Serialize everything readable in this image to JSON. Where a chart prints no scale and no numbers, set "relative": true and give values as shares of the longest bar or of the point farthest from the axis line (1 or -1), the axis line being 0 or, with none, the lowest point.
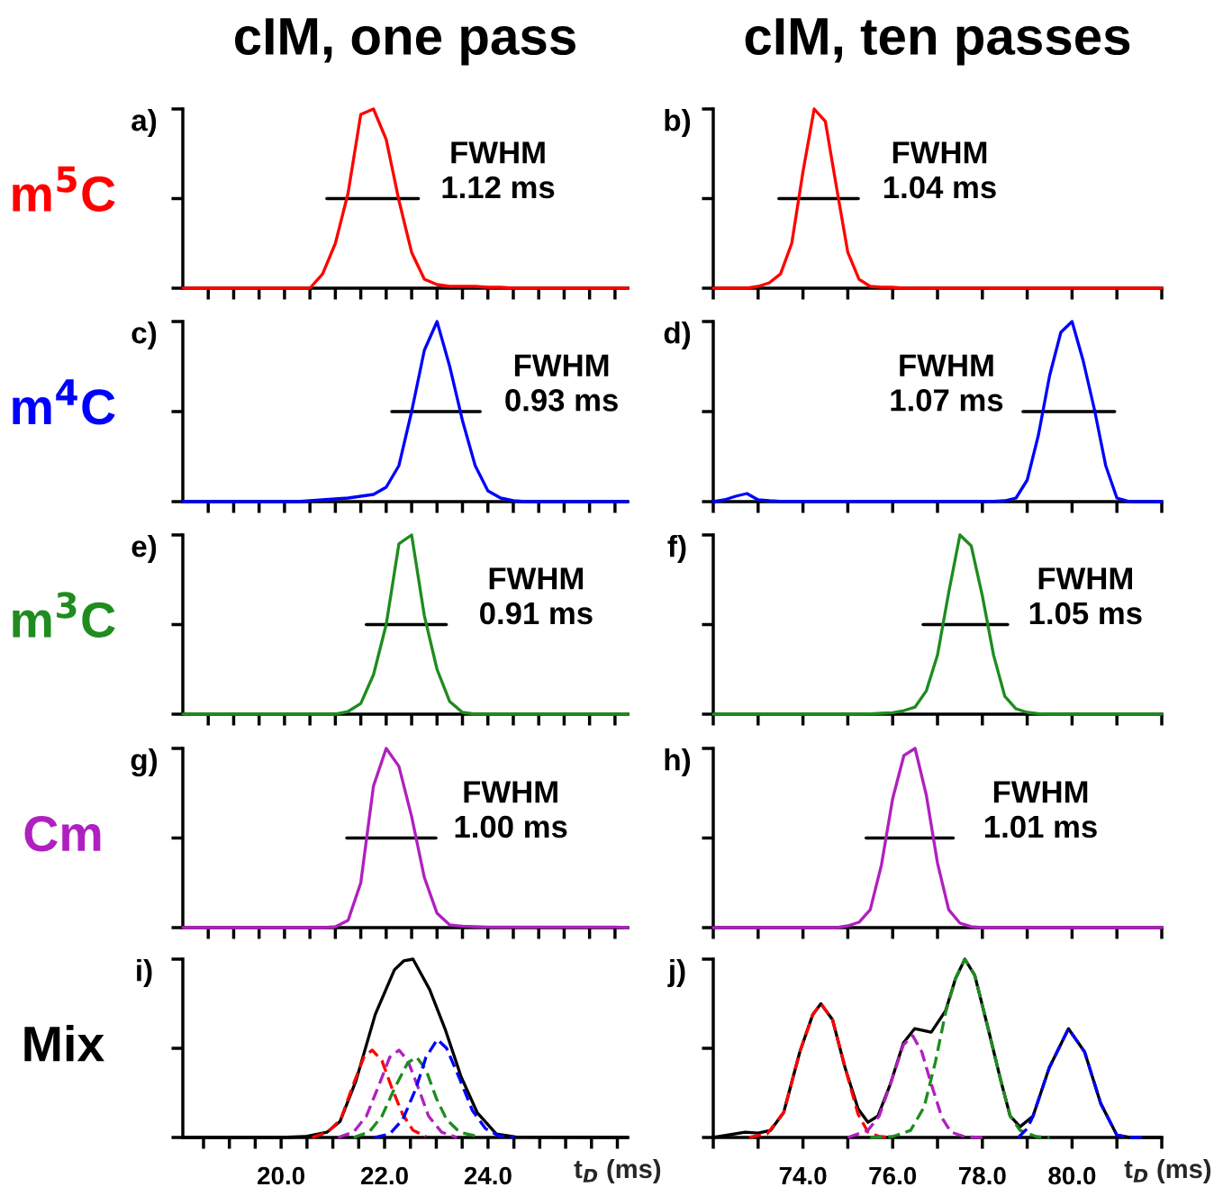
{
  "chart_data": [
    {
      "type": "line",
      "title": "a)",
      "subtitle": "cIM, one pass",
      "ylabel": "m$^{5}$C",
      "relative": true,
      "tick_labels": false,
      "categories": [
        null,
        null,
        null,
        null,
        null,
        null,
        null,
        null,
        null,
        null,
        null,
        null,
        null,
        null,
        null,
        null,
        null,
        null,
        null,
        null,
        null,
        null,
        null,
        null,
        null,
        null,
        null,
        null,
        null,
        null,
        null,
        null,
        null,
        null,
        null,
        null
      ],
      "annotations": [
        "FWHM\n1.12 ms"
      ],
      "series": [
        {
          "color": "#ff0000",
          "values": [
            0,
            0,
            0,
            0,
            0,
            0,
            0,
            0,
            0,
            0,
            0,
            0.08,
            0.25,
            0.53,
            0.97,
            1.0,
            0.83,
            0.49,
            0.2,
            0.05,
            0.02,
            0.01,
            0.01,
            0.01,
            0.005,
            0.005,
            0,
            0,
            0,
            0,
            0,
            0,
            0,
            0,
            0,
            0
          ]
        }
      ]
    },
    {
      "type": "line",
      "title": "b)",
      "subtitle": "cIM, ten passes",
      "relative": true,
      "tick_labels": false,
      "categories": [
        null,
        null,
        null,
        null,
        null,
        null,
        null,
        null,
        null,
        null,
        null,
        null,
        null,
        null,
        null,
        null,
        null,
        null,
        null,
        null,
        null,
        null,
        null,
        null,
        null,
        null,
        null,
        null,
        null,
        null,
        null,
        null,
        null,
        null,
        null,
        null,
        null,
        null,
        null,
        null,
        null
      ],
      "annotations": [
        "FWHM\n1.04 ms"
      ],
      "series": [
        {
          "color": "#ff0000",
          "values": [
            0,
            0,
            0,
            0,
            0.01,
            0.03,
            0.08,
            0.25,
            0.65,
            1.0,
            0.93,
            0.56,
            0.2,
            0.05,
            0.01,
            0.005,
            0.005,
            0,
            0,
            0,
            0,
            0,
            0,
            0,
            0,
            0,
            0,
            0,
            0,
            0,
            0,
            0,
            0,
            0,
            0,
            0,
            0,
            0,
            0,
            0,
            0
          ]
        }
      ]
    },
    {
      "type": "line",
      "title": "c)",
      "ylabel": "m$^{4}$C",
      "relative": true,
      "tick_labels": false,
      "categories": [
        null,
        null,
        null,
        null,
        null,
        null,
        null,
        null,
        null,
        null,
        null,
        null,
        null,
        null,
        null,
        null,
        null,
        null,
        null,
        null,
        null,
        null,
        null,
        null,
        null,
        null,
        null,
        null,
        null,
        null,
        null,
        null,
        null,
        null,
        null,
        null
      ],
      "annotations": [
        "FWHM\n0.93 ms"
      ],
      "series": [
        {
          "color": "#0000ff",
          "values": [
            0,
            0,
            0,
            0,
            0,
            0,
            0,
            0,
            0,
            0,
            0.005,
            0.01,
            0.015,
            0.02,
            0.03,
            0.04,
            0.08,
            0.2,
            0.5,
            0.84,
            1.0,
            0.75,
            0.45,
            0.2,
            0.06,
            0.02,
            0.005,
            0,
            0,
            0,
            0,
            0,
            0,
            0,
            0,
            0
          ]
        }
      ]
    },
    {
      "type": "line",
      "title": "d)",
      "relative": true,
      "tick_labels": false,
      "categories": [
        null,
        null,
        null,
        null,
        null,
        null,
        null,
        null,
        null,
        null,
        null,
        null,
        null,
        null,
        null,
        null,
        null,
        null,
        null,
        null,
        null,
        null,
        null,
        null,
        null,
        null,
        null,
        null,
        null,
        null,
        null,
        null,
        null,
        null,
        null,
        null,
        null,
        null,
        null,
        null,
        null
      ],
      "annotations": [
        "FWHM\n1.07 ms"
      ],
      "series": [
        {
          "color": "#0000ff",
          "values": [
            0,
            0.01,
            0.03,
            0.045,
            0.01,
            0.005,
            0.002,
            0.002,
            0.002,
            0.002,
            0.002,
            0.002,
            0.002,
            0.002,
            0.002,
            0.002,
            0.002,
            0.002,
            0.002,
            0.002,
            0.002,
            0.002,
            0.002,
            0.002,
            0.002,
            0.002,
            0.005,
            0.02,
            0.12,
            0.37,
            0.7,
            0.94,
            1.0,
            0.78,
            0.51,
            0.2,
            0.02,
            0.002,
            0,
            0,
            0
          ]
        }
      ]
    },
    {
      "type": "line",
      "title": "e)",
      "ylabel": "m$^{3}$C",
      "relative": true,
      "tick_labels": false,
      "categories": [
        null,
        null,
        null,
        null,
        null,
        null,
        null,
        null,
        null,
        null,
        null,
        null,
        null,
        null,
        null,
        null,
        null,
        null,
        null,
        null,
        null,
        null,
        null,
        null,
        null,
        null,
        null,
        null,
        null,
        null,
        null,
        null,
        null,
        null,
        null,
        null
      ],
      "annotations": [
        "FWHM\n0.91 ms"
      ],
      "series": [
        {
          "color": "#1e8c1e",
          "values": [
            0,
            0,
            0,
            0,
            0,
            0,
            0,
            0,
            0,
            0,
            0,
            0,
            0,
            0.015,
            0.06,
            0.22,
            0.5,
            0.95,
            1.0,
            0.55,
            0.25,
            0.07,
            0.01,
            0,
            0,
            0,
            0,
            0,
            0,
            0,
            0,
            0,
            0,
            0,
            0,
            0
          ]
        }
      ]
    },
    {
      "type": "line",
      "title": "f)",
      "relative": true,
      "tick_labels": false,
      "categories": [
        null,
        null,
        null,
        null,
        null,
        null,
        null,
        null,
        null,
        null,
        null,
        null,
        null,
        null,
        null,
        null,
        null,
        null,
        null,
        null,
        null,
        null,
        null,
        null,
        null,
        null,
        null,
        null,
        null,
        null,
        null,
        null,
        null,
        null,
        null,
        null,
        null,
        null,
        null,
        null,
        null
      ],
      "annotations": [
        "FWHM\n1.05 ms"
      ],
      "series": [
        {
          "color": "#1e8c1e",
          "values": [
            0,
            0,
            0,
            0,
            0,
            0,
            0,
            0,
            0,
            0,
            0,
            0,
            0,
            0,
            0.002,
            0.005,
            0.008,
            0.02,
            0.04,
            0.13,
            0.33,
            0.68,
            1.0,
            0.94,
            0.66,
            0.33,
            0.1,
            0.03,
            0.01,
            0.003,
            0,
            0,
            0,
            0,
            0,
            0,
            0,
            0,
            0,
            0,
            0
          ]
        }
      ]
    },
    {
      "type": "line",
      "title": "g)",
      "ylabel": "Cm",
      "relative": true,
      "tick_labels": false,
      "categories": [
        null,
        null,
        null,
        null,
        null,
        null,
        null,
        null,
        null,
        null,
        null,
        null,
        null,
        null,
        null,
        null,
        null,
        null,
        null,
        null,
        null,
        null,
        null,
        null,
        null,
        null,
        null,
        null,
        null,
        null,
        null,
        null,
        null,
        null,
        null,
        null
      ],
      "annotations": [
        "FWHM\n1.00 ms"
      ],
      "series": [
        {
          "color": "#b020c0",
          "values": [
            0,
            0,
            0,
            0,
            0,
            0,
            0,
            0,
            0,
            0,
            0,
            0,
            0.005,
            0.04,
            0.25,
            0.79,
            1.0,
            0.9,
            0.62,
            0.28,
            0.08,
            0.015,
            0.008,
            0.005,
            0.003,
            0.003,
            0.003,
            0.003,
            0.003,
            0.003,
            0.003,
            0.003,
            0.003,
            0.003,
            0.003,
            0
          ]
        }
      ]
    },
    {
      "type": "line",
      "title": "h)",
      "relative": true,
      "tick_labels": false,
      "categories": [
        null,
        null,
        null,
        null,
        null,
        null,
        null,
        null,
        null,
        null,
        null,
        null,
        null,
        null,
        null,
        null,
        null,
        null,
        null,
        null,
        null,
        null,
        null,
        null,
        null,
        null,
        null,
        null,
        null,
        null,
        null,
        null,
        null,
        null,
        null,
        null,
        null,
        null,
        null,
        null,
        null
      ],
      "annotations": [
        "FWHM\n1.01 ms"
      ],
      "series": [
        {
          "color": "#b020c0",
          "values": [
            0,
            0,
            0,
            0,
            0,
            0,
            0,
            0,
            0,
            0,
            0,
            0,
            0.01,
            0.03,
            0.1,
            0.35,
            0.72,
            0.96,
            1.0,
            0.74,
            0.36,
            0.1,
            0.025,
            0.006,
            0,
            0,
            0,
            0,
            0,
            0,
            0,
            0,
            0,
            0,
            0,
            0,
            0,
            0,
            0,
            0,
            0
          ]
        }
      ]
    },
    {
      "type": "line",
      "title": "i)",
      "ylabel": "Mix",
      "xlabel": "t$_{D}$ (ms)",
      "relative": true,
      "tick_labels": "x",
      "xlim": [
        18.1,
        26.7
      ],
      "xticks": [
        {
          "value": 18.5,
          "label": null
        },
        {
          "value": 19,
          "label": null
        },
        {
          "value": 19.5,
          "label": null
        },
        {
          "value": 20,
          "label": "20.0"
        },
        {
          "value": 20.5,
          "label": null
        },
        {
          "value": 21,
          "label": null
        },
        {
          "value": 21.5,
          "label": null
        },
        {
          "value": 22,
          "label": "22.0"
        },
        {
          "value": 22.5,
          "label": null
        },
        {
          "value": 23,
          "label": null
        },
        {
          "value": 23.5,
          "label": null
        },
        {
          "value": 24,
          "label": "24.0"
        },
        {
          "value": 24.5,
          "label": null
        },
        {
          "value": 25,
          "label": null
        },
        {
          "value": 25.5,
          "label": null
        },
        {
          "value": 26,
          "label": null
        },
        {
          "value": 26.5,
          "label": null
        }
      ],
      "series": [
        {
          "color": "#000000",
          "x": [
            18.1,
            20.0,
            20.46,
            20.89,
            21.14,
            21.45,
            21.82,
            22.19,
            22.37,
            22.55,
            22.87,
            23.18,
            23.48,
            23.79,
            24.16,
            24.53,
            26.7
          ],
          "values": [
            0,
            0,
            0.005,
            0.03,
            0.09,
            0.32,
            0.69,
            0.94,
            0.99,
            1.0,
            0.83,
            0.6,
            0.34,
            0.14,
            0.02,
            0.003,
            0
          ]
        },
        {
          "color": "#ff0000",
          "line_style": "dashed",
          "x": [
            20.6,
            20.9,
            21.15,
            21.4,
            21.6,
            21.76,
            21.95,
            22.15,
            22.35,
            22.55,
            22.8
          ],
          "values": [
            0,
            0.03,
            0.1,
            0.3,
            0.45,
            0.49,
            0.43,
            0.27,
            0.13,
            0.04,
            0.005
          ]
        },
        {
          "color": "#b020c0",
          "line_style": "dashed",
          "x": [
            21.1,
            21.4,
            21.65,
            21.9,
            22.1,
            22.28,
            22.45,
            22.65,
            22.85,
            23.1,
            23.4
          ],
          "values": [
            0,
            0.03,
            0.12,
            0.3,
            0.45,
            0.49,
            0.43,
            0.28,
            0.12,
            0.03,
            0
          ]
        },
        {
          "color": "#1e8c1e",
          "line_style": "dashed",
          "x": [
            21.4,
            21.7,
            21.95,
            22.2,
            22.45,
            22.62,
            22.8,
            23.0,
            23.2,
            23.45,
            23.8
          ],
          "values": [
            0,
            0.03,
            0.12,
            0.28,
            0.42,
            0.45,
            0.38,
            0.22,
            0.1,
            0.03,
            0.005
          ]
        },
        {
          "color": "#0000ff",
          "line_style": "dashed",
          "x": [
            21.8,
            22.1,
            22.35,
            22.6,
            22.8,
            23.02,
            23.2,
            23.45,
            23.7,
            23.95,
            24.2,
            24.5
          ],
          "values": [
            0,
            0.02,
            0.1,
            0.27,
            0.45,
            0.55,
            0.5,
            0.33,
            0.15,
            0.05,
            0.01,
            0
          ]
        }
      ]
    },
    {
      "type": "line",
      "title": "j)",
      "xlabel": "t$_{D}$ (ms)",
      "relative": true,
      "tick_labels": "x",
      "xlim": [
        72,
        82
      ],
      "xticks": [
        {
          "value": 72,
          "label": null
        },
        {
          "value": 73,
          "label": null
        },
        {
          "value": 74,
          "label": "74.0"
        },
        {
          "value": 75,
          "label": null
        },
        {
          "value": 76,
          "label": "76.0"
        },
        {
          "value": 77,
          "label": null
        },
        {
          "value": 78,
          "label": "78.0"
        },
        {
          "value": 79,
          "label": null
        },
        {
          "value": 80,
          "label": "80.0"
        },
        {
          "value": 81,
          "label": null
        },
        {
          "value": 82,
          "label": null
        }
      ],
      "series": [
        {
          "color": "#000000",
          "x": [
            72.0,
            72.71,
            73.0,
            73.28,
            73.57,
            73.93,
            74.22,
            74.4,
            74.66,
            74.94,
            75.23,
            75.45,
            75.67,
            75.95,
            76.24,
            76.49,
            76.86,
            77.18,
            77.4,
            77.61,
            77.83,
            78.12,
            78.41,
            78.62,
            78.84,
            79.13,
            79.49,
            79.92,
            80.28,
            80.64,
            81.0,
            81.29,
            82.0
          ],
          "values": [
            0,
            0.03,
            0.025,
            0.04,
            0.14,
            0.48,
            0.69,
            0.75,
            0.66,
            0.39,
            0.16,
            0.085,
            0.12,
            0.3,
            0.53,
            0.61,
            0.59,
            0.71,
            0.89,
            1.0,
            0.91,
            0.62,
            0.32,
            0.12,
            0.06,
            0.12,
            0.39,
            0.61,
            0.48,
            0.19,
            0.013,
            0,
            0
          ]
        },
        {
          "color": "#ff0000",
          "line_style": "dashed",
          "x": [
            72.8,
            73.2,
            73.57,
            73.93,
            74.22,
            74.4,
            74.66,
            74.94,
            75.23,
            75.45,
            75.7,
            76.0
          ],
          "values": [
            0,
            0.02,
            0.14,
            0.48,
            0.69,
            0.75,
            0.66,
            0.39,
            0.13,
            0.03,
            0.005,
            0
          ]
        },
        {
          "color": "#b020c0",
          "line_style": "dashed",
          "x": [
            75.0,
            75.45,
            75.7,
            75.95,
            76.24,
            76.45,
            76.65,
            76.86,
            77.1,
            77.3,
            77.6,
            78.0
          ],
          "values": [
            0,
            0.04,
            0.12,
            0.3,
            0.52,
            0.57,
            0.48,
            0.3,
            0.11,
            0.03,
            0.005,
            0
          ]
        },
        {
          "color": "#1e8c1e",
          "line_style": "dashed",
          "x": [
            75.5,
            76.0,
            76.4,
            76.7,
            76.95,
            77.18,
            77.4,
            77.61,
            77.83,
            78.12,
            78.41,
            78.62,
            78.84,
            79.2,
            79.5
          ],
          "values": [
            0,
            0.005,
            0.04,
            0.17,
            0.42,
            0.7,
            0.89,
            1.0,
            0.91,
            0.62,
            0.32,
            0.12,
            0.04,
            0.005,
            0
          ]
        },
        {
          "color": "#0000ff",
          "line_style": "dashed",
          "x": [
            78.8,
            79.0,
            79.13,
            79.49,
            79.92,
            80.28,
            80.64,
            81.0,
            81.3,
            81.6
          ],
          "values": [
            0,
            0.05,
            0.12,
            0.39,
            0.61,
            0.48,
            0.19,
            0.013,
            0,
            0
          ]
        }
      ]
    }
  ]
}
